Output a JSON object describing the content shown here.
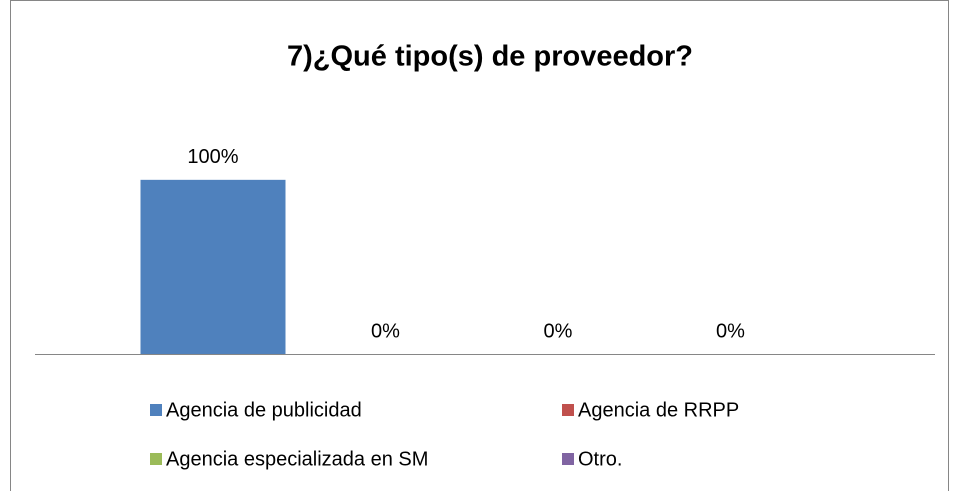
{
  "chart_data": {
    "type": "bar",
    "title": "7)¿Qué tipo(s) de proveedor?",
    "categories": [
      null
    ],
    "series": [
      {
        "name": "Agencia de publicidad",
        "color": "#4f81bd",
        "values": [
          100
        ],
        "value_labels": [
          "100%"
        ]
      },
      {
        "name": "Agencia de RRPP",
        "color": "#c0504d",
        "values": [
          0
        ],
        "value_labels": [
          "0%"
        ]
      },
      {
        "name": "Agencia especializada en SM",
        "color": "#9bbb59",
        "values": [
          0
        ],
        "value_labels": [
          "0%"
        ]
      },
      {
        "name": "Otro.",
        "color": "#8064a2",
        "values": [
          0
        ],
        "value_labels": [
          "0%"
        ]
      }
    ],
    "ylim": [
      0,
      120
    ],
    "legend": "bottom"
  }
}
